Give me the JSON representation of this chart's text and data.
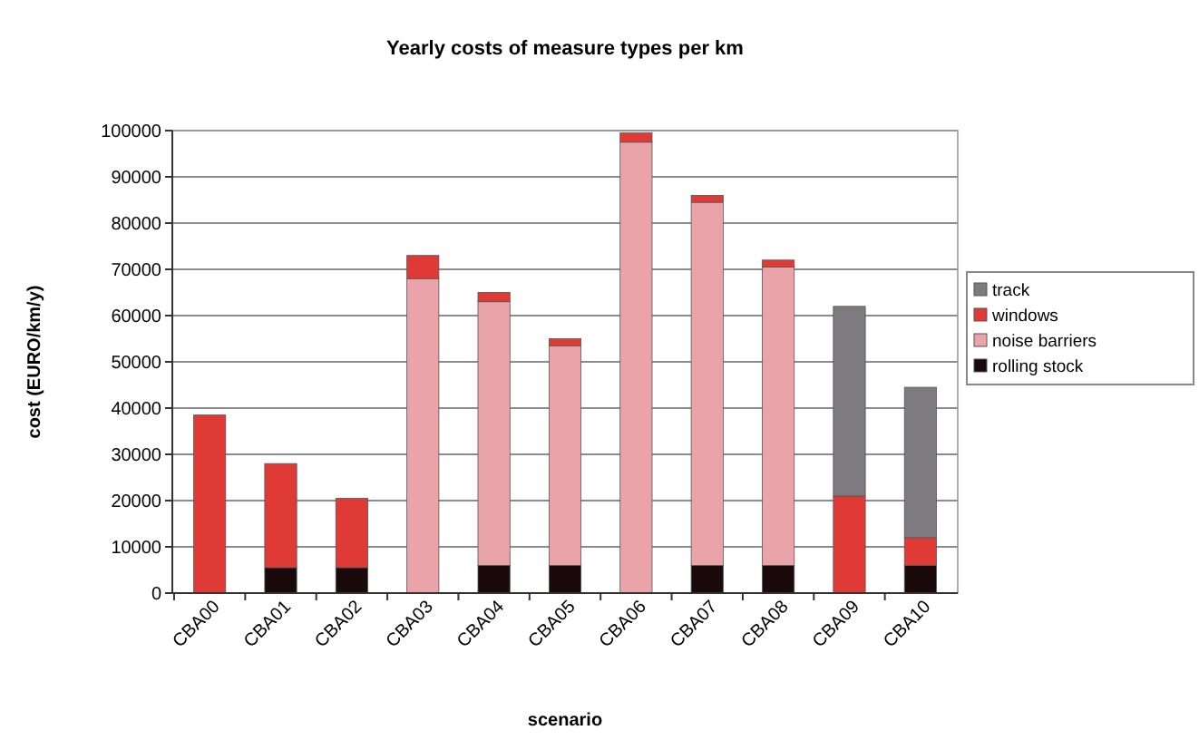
{
  "chart_data": {
    "type": "bar",
    "title": "Yearly costs of measure types per km",
    "xlabel": "scenario",
    "ylabel": "cost (EURO/km/y)",
    "categories": [
      "CBA00",
      "CBA01",
      "CBA02",
      "CBA03",
      "CBA04",
      "CBA05",
      "CBA06",
      "CBA07",
      "CBA08",
      "CBA09",
      "CBA10"
    ],
    "stacked": true,
    "series": [
      {
        "name": "rolling stock",
        "color": "#1a0a0c",
        "values": [
          0,
          5500,
          5500,
          0,
          6000,
          6000,
          0,
          6000,
          6000,
          0,
          6000
        ]
      },
      {
        "name": "noise barriers",
        "color": "#eba3aa",
        "values": [
          0,
          0,
          0,
          68000,
          57000,
          47500,
          97500,
          78500,
          64500,
          0,
          0
        ]
      },
      {
        "name": "windows",
        "color": "#e03a36",
        "values": [
          38500,
          22500,
          15000,
          5000,
          2000,
          1500,
          2000,
          1500,
          1500,
          21000,
          6000
        ]
      },
      {
        "name": "track",
        "color": "#7d7a80",
        "values": [
          0,
          0,
          0,
          0,
          0,
          0,
          0,
          0,
          0,
          41000,
          32500
        ]
      }
    ],
    "ylim": [
      0,
      100000
    ],
    "yticks": [
      0,
      10000,
      20000,
      30000,
      40000,
      50000,
      60000,
      70000,
      80000,
      90000,
      100000
    ],
    "grid": "y",
    "legend": "right"
  }
}
